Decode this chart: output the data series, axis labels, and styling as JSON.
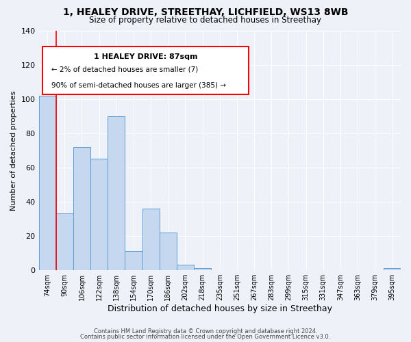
{
  "title": "1, HEALEY DRIVE, STREETHAY, LICHFIELD, WS13 8WB",
  "subtitle": "Size of property relative to detached houses in Streethay",
  "xlabel": "Distribution of detached houses by size in Streethay",
  "ylabel": "Number of detached properties",
  "bar_labels": [
    "74sqm",
    "90sqm",
    "106sqm",
    "122sqm",
    "138sqm",
    "154sqm",
    "170sqm",
    "186sqm",
    "202sqm",
    "218sqm",
    "235sqm",
    "251sqm",
    "267sqm",
    "283sqm",
    "299sqm",
    "315sqm",
    "331sqm",
    "347sqm",
    "363sqm",
    "379sqm",
    "395sqm"
  ],
  "bar_values": [
    102,
    33,
    72,
    65,
    90,
    11,
    36,
    22,
    3,
    1,
    0,
    0,
    0,
    0,
    0,
    0,
    0,
    0,
    0,
    0,
    1
  ],
  "bar_color": "#c5d8f0",
  "bar_edge_color": "#5b9bd5",
  "ylim": [
    0,
    140
  ],
  "yticks": [
    0,
    20,
    40,
    60,
    80,
    100,
    120,
    140
  ],
  "annotation_title": "1 HEALEY DRIVE: 87sqm",
  "annotation_line1": "← 2% of detached houses are smaller (7)",
  "annotation_line2": "90% of semi-detached houses are larger (385) →",
  "footer1": "Contains HM Land Registry data © Crown copyright and database right 2024.",
  "footer2": "Contains public sector information licensed under the Open Government Licence v3.0.",
  "background_color": "#eef2f8",
  "grid_color": "#ffffff",
  "title_fontsize": 10,
  "subtitle_fontsize": 8.5,
  "ylabel_fontsize": 8,
  "xlabel_fontsize": 9,
  "tick_fontsize": 7,
  "annot_fontsize_title": 8,
  "annot_fontsize_body": 7.5,
  "footer_fontsize": 6
}
